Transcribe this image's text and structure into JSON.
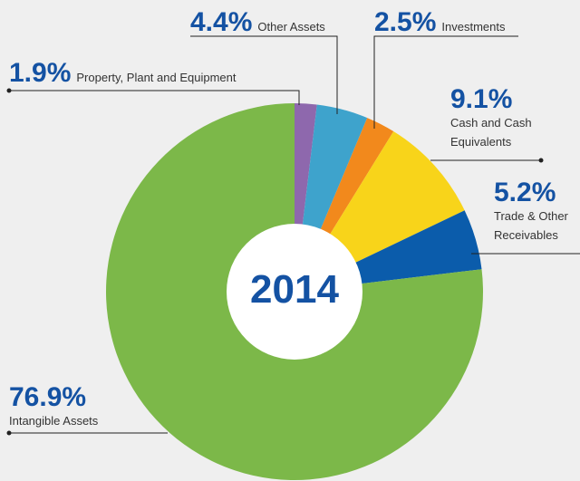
{
  "chart_data": {
    "type": "donut",
    "center_label": "2014",
    "categories": [
      "Property, Plant and Equipment",
      "Other Assets",
      "Investments",
      "Cash and Cash Equivalents",
      "Trade & Other Receivables",
      "Intangible Assets"
    ],
    "values": [
      1.9,
      4.4,
      2.5,
      9.1,
      5.2,
      76.9
    ],
    "value_labels": [
      "1.9%",
      "4.4%",
      "2.5%",
      "9.1%",
      "5.2%",
      "76.9%"
    ],
    "colors": [
      "#8e68ad",
      "#3ea3cc",
      "#f2891c",
      "#f8d41a",
      "#0b5cab",
      "#7cb849"
    ]
  }
}
